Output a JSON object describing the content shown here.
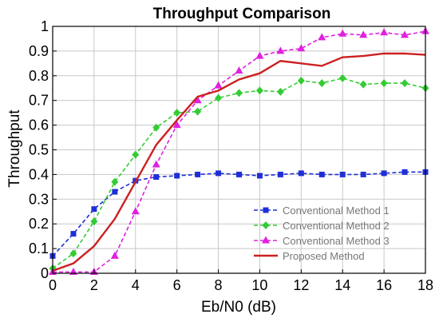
{
  "chart_data": {
    "type": "line",
    "title": "Throughput Comparison",
    "xlabel": "Eb/N0 (dB)",
    "ylabel": "Throughput",
    "xlim": [
      0,
      18
    ],
    "ylim": [
      0,
      1
    ],
    "xticks": [
      0,
      2,
      4,
      6,
      8,
      10,
      12,
      14,
      16,
      18
    ],
    "yticks": [
      0,
      0.1,
      0.2,
      0.3,
      0.4,
      0.5,
      0.6,
      0.7,
      0.8,
      0.9,
      1
    ],
    "ytick_labels": [
      "0",
      "0.1",
      "0.2",
      "0.3",
      "0.4",
      "0.5",
      "0.6",
      "0.7",
      "0.8",
      "0.9",
      "1"
    ],
    "grid": true,
    "legend_position": "bottom-right",
    "x": [
      0,
      1,
      2,
      3,
      4,
      5,
      6,
      7,
      8,
      9,
      10,
      11,
      12,
      13,
      14,
      15,
      16,
      17,
      18
    ],
    "series": [
      {
        "name": "Conventional Method 1",
        "color": "#1f2fd6",
        "marker": "square",
        "dashed": true,
        "values": [
          0.07,
          0.16,
          0.26,
          0.33,
          0.375,
          0.39,
          0.395,
          0.4,
          0.405,
          0.4,
          0.395,
          0.4,
          0.405,
          0.4,
          0.4,
          0.4,
          0.405,
          0.41,
          0.41
        ]
      },
      {
        "name": "Conventional Method 2",
        "color": "#33cc33",
        "marker": "diamond",
        "dashed": true,
        "values": [
          0.02,
          0.08,
          0.21,
          0.37,
          0.48,
          0.59,
          0.65,
          0.655,
          0.71,
          0.73,
          0.74,
          0.735,
          0.78,
          0.77,
          0.79,
          0.765,
          0.77,
          0.77,
          0.75
        ]
      },
      {
        "name": "Conventional Method 3",
        "color": "#e020e0",
        "marker": "triangle",
        "dashed": true,
        "values": [
          0.005,
          0.005,
          0.005,
          0.07,
          0.25,
          0.44,
          0.6,
          0.7,
          0.76,
          0.82,
          0.88,
          0.9,
          0.91,
          0.955,
          0.97,
          0.965,
          0.975,
          0.965,
          0.98
        ]
      },
      {
        "name": "Proposed Method",
        "color": "#cc2020",
        "marker": "none",
        "dashed": false,
        "values": [
          0.01,
          0.04,
          0.11,
          0.22,
          0.37,
          0.52,
          0.62,
          0.715,
          0.74,
          0.785,
          0.81,
          0.86,
          0.85,
          0.84,
          0.875,
          0.88,
          0.89,
          0.89,
          0.885
        ]
      }
    ]
  }
}
